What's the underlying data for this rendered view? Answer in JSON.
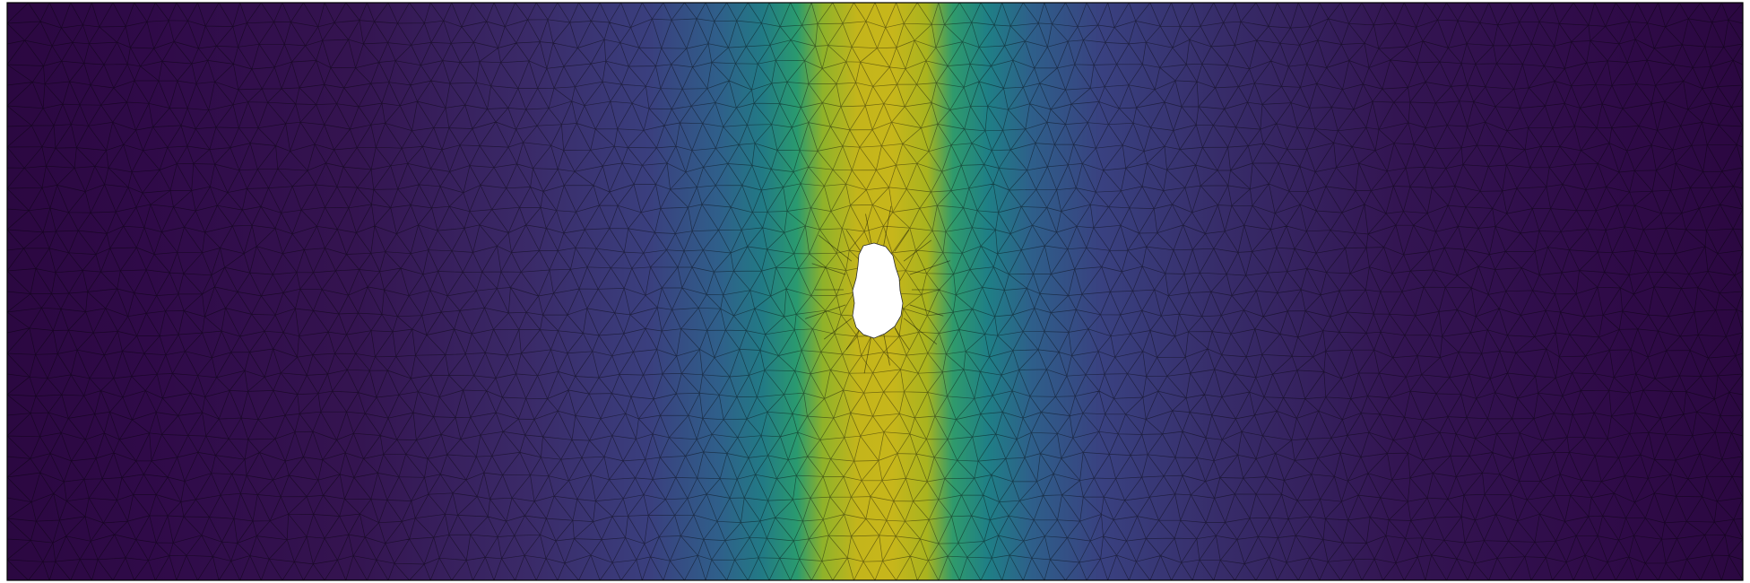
{
  "figure": {
    "kind": "finite-element triangular mesh with scalar field",
    "colormap": [
      "#440154",
      "#482878",
      "#3e4989",
      "#31688e",
      "#26828e",
      "#1f9e89",
      "#35b779",
      "#6ece58",
      "#b5de2b",
      "#fde725"
    ],
    "field_colors": {
      "edge_low": "#2e0a4a",
      "mid_low": "#3b2d6e",
      "mid": "#2a6f8a",
      "high": "#1f8f6f",
      "peak": "#c2b51d"
    },
    "mesh_line_color": "#000000",
    "hole_color": "#ffffff",
    "border_color": "#000000"
  }
}
